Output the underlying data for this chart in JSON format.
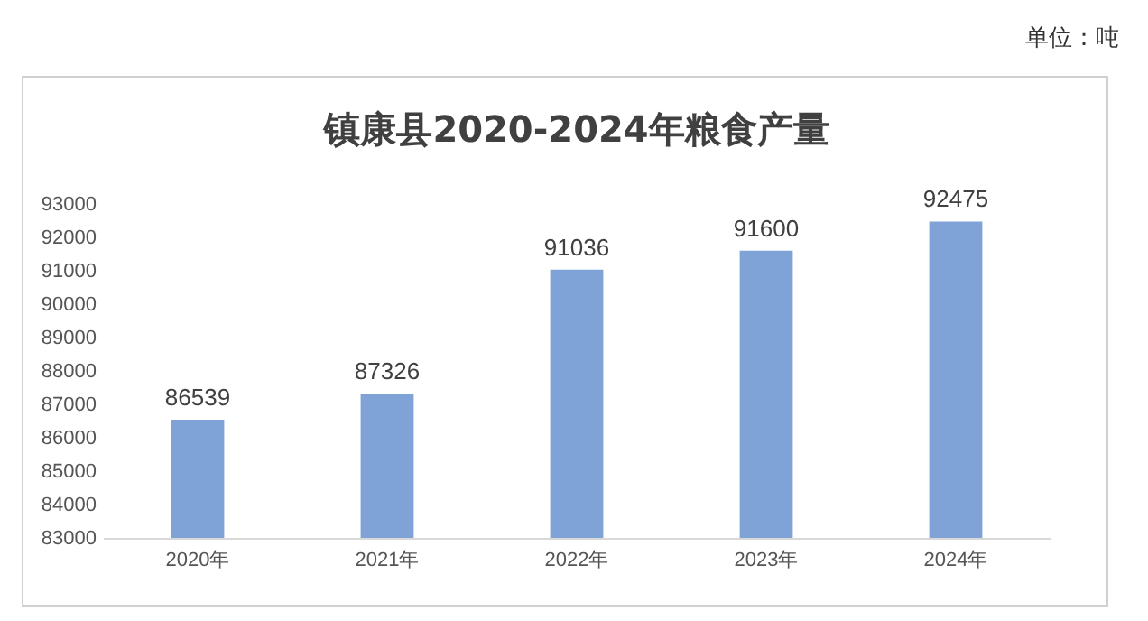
{
  "chart_data": {
    "type": "bar",
    "title": "镇康县2020-2024年粮食产量",
    "annotations": [
      "单位：吨"
    ],
    "categories": [
      "2020年",
      "2021年",
      "2022年",
      "2023年",
      "2024年"
    ],
    "values": [
      86539,
      87326,
      91036,
      91600,
      92475
    ],
    "color": "#7fa3d6",
    "ylim": [
      83000,
      93000
    ],
    "yticks": [
      83000,
      84000,
      85000,
      86000,
      87000,
      88000,
      89000,
      90000,
      91000,
      92000,
      93000
    ],
    "grid": false,
    "data_labels": true
  }
}
